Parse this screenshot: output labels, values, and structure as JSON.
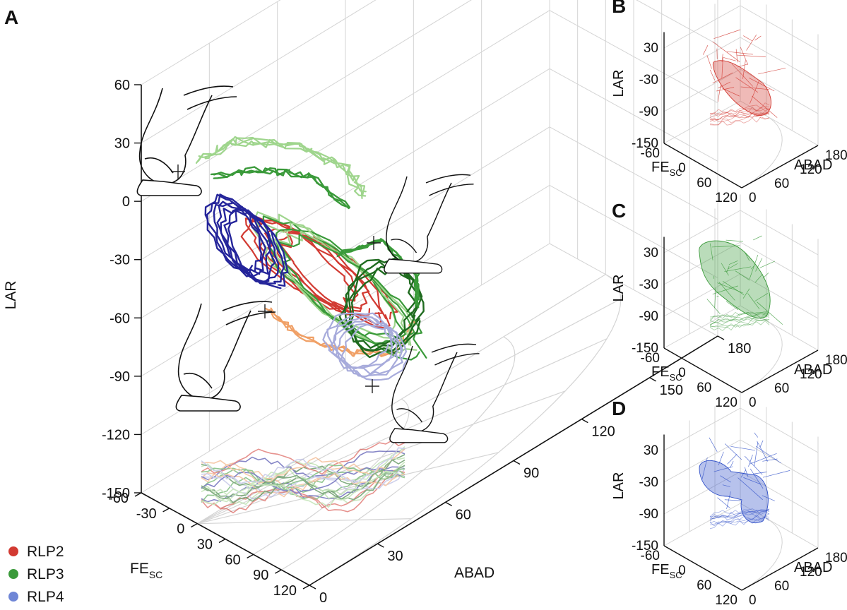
{
  "colors": {
    "RLP2": "#d23a32",
    "RLP3": "#3a9a3a",
    "RLP4": "#6f86d6",
    "RLP3_light": "#9fd58d",
    "RLP3_dark": "#1f6b1f",
    "RLP4_dark": "#24249a",
    "RLP4_light": "#a7abdb",
    "orange": "#f0a066",
    "grid": "#d4d4d4"
  },
  "chart_data": [
    {
      "panel": "A",
      "type": "line",
      "projection": "3d",
      "axes": {
        "x": {
          "label_main": "FE",
          "label_sub": "SC",
          "ticks": [
            "-60",
            "-30",
            "0",
            "30",
            "60",
            "90",
            "120"
          ],
          "range": [
            -60,
            120
          ]
        },
        "y": {
          "label": "ABAD",
          "ticks": [
            "0",
            "30",
            "60",
            "90",
            "120",
            "150",
            "180"
          ],
          "range": [
            0,
            180
          ]
        },
        "z": {
          "label": "LAR",
          "ticks": [
            "60",
            "30",
            "0",
            "-30",
            "-60",
            "-90",
            "-120",
            "-150"
          ],
          "range": [
            -150,
            60
          ]
        }
      },
      "legend": {
        "placement": "bottom-left",
        "entries": [
          {
            "name": "RLP2",
            "color": "#d23a32"
          },
          {
            "name": "RLP3",
            "color": "#3a9a3a"
          },
          {
            "name": "RLP4",
            "color": "#6f86d6"
          }
        ]
      },
      "grid": true,
      "shadow_projection_on_floor": true
    },
    {
      "panel": "B",
      "type": "mesh",
      "series": "RLP2",
      "axes": {
        "x": {
          "label_main": "FE",
          "label_sub": "SC",
          "ticks": [
            "-60",
            "0",
            "60",
            "120"
          ]
        },
        "y": {
          "label": "ABAD",
          "ticks": [
            "0",
            "60",
            "120",
            "180"
          ]
        },
        "z": {
          "label": "LAR",
          "ticks": [
            "30",
            "-30",
            "-90",
            "-150"
          ]
        }
      }
    },
    {
      "panel": "C",
      "type": "mesh",
      "series": "RLP3",
      "axes": {
        "x": {
          "label_main": "FE",
          "label_sub": "SC",
          "ticks": [
            "-60",
            "0",
            "60",
            "120"
          ]
        },
        "y": {
          "label": "ABAD",
          "ticks": [
            "0",
            "60",
            "120",
            "180"
          ]
        },
        "z": {
          "label": "LAR",
          "ticks": [
            "30",
            "-30",
            "-90",
            "-150"
          ]
        }
      }
    },
    {
      "panel": "D",
      "type": "mesh",
      "series": "RLP4",
      "axes": {
        "x": {
          "label_main": "FE",
          "label_sub": "SC",
          "ticks": [
            "-60",
            "0",
            "60",
            "120"
          ]
        },
        "y": {
          "label": "ABAD",
          "ticks": [
            "0",
            "60",
            "120",
            "180"
          ]
        },
        "z": {
          "label": "LAR",
          "ticks": [
            "30",
            "-30",
            "-90",
            "-150"
          ]
        }
      }
    }
  ]
}
